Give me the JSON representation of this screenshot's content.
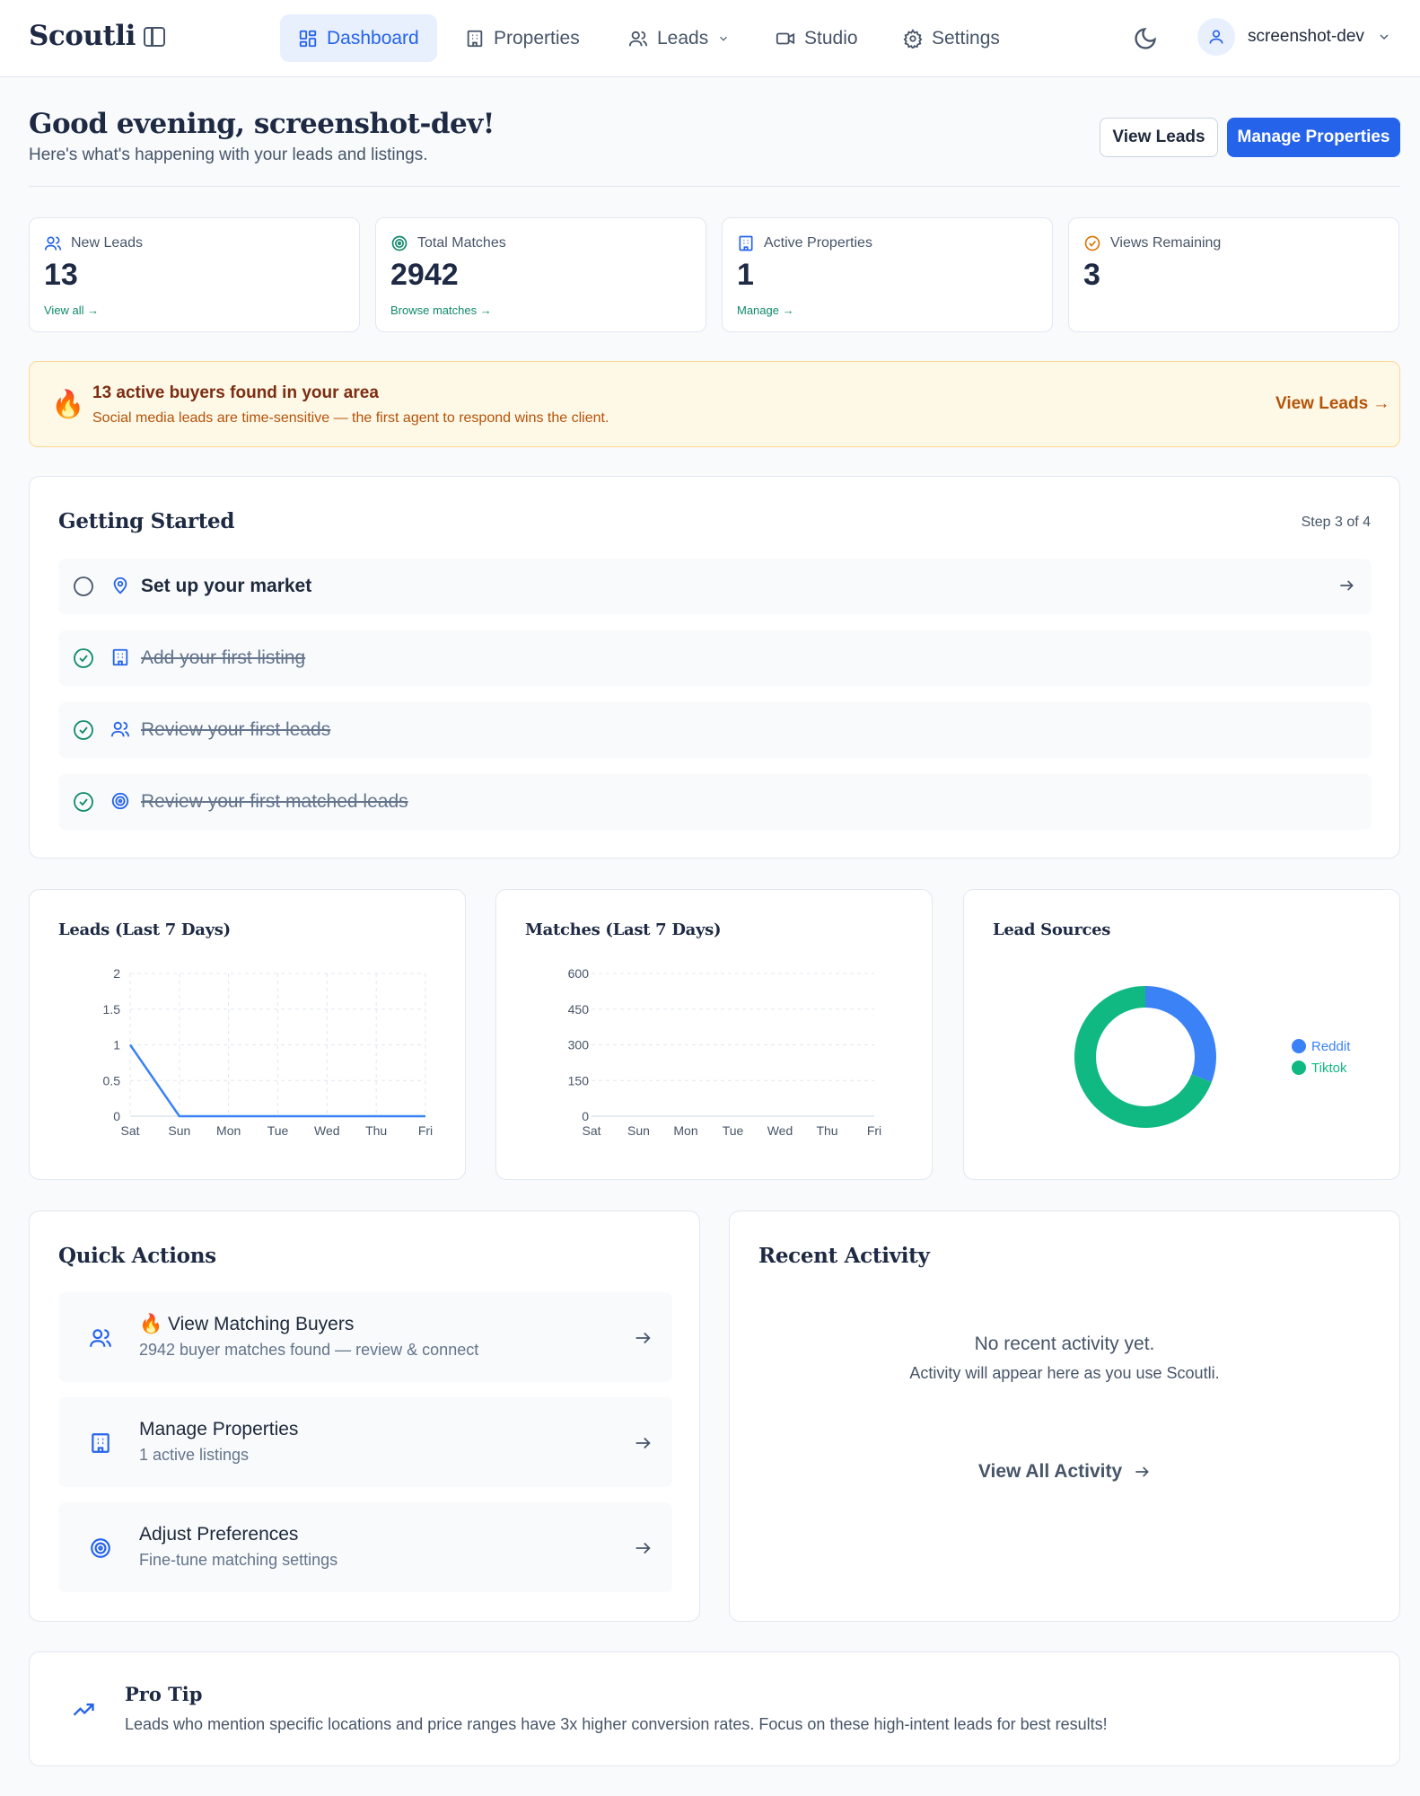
{
  "app": {
    "logo": "Scoutli"
  },
  "nav": {
    "items": [
      {
        "label": "Dashboard"
      },
      {
        "label": "Properties"
      },
      {
        "label": "Leads"
      },
      {
        "label": "Studio"
      },
      {
        "label": "Settings"
      }
    ],
    "user": "screenshot-dev"
  },
  "header": {
    "greeting": "Good evening, screenshot-dev!",
    "subtitle": "Here's what's happening with your leads and listings.",
    "view_leads": "View Leads",
    "manage_properties": "Manage Properties"
  },
  "stats": [
    {
      "label": "New Leads",
      "value": "13",
      "link": "View all →"
    },
    {
      "label": "Total Matches",
      "value": "2942",
      "link": "Browse matches →"
    },
    {
      "label": "Active Properties",
      "value": "1",
      "link": "Manage →"
    },
    {
      "label": "Views Remaining",
      "value": "3",
      "link": ""
    }
  ],
  "alert": {
    "icon": "🔥",
    "title": "13 active buyers found in your area",
    "text": "Social media leads are time-sensitive — the first agent to respond wins the client.",
    "action": "View Leads →"
  },
  "getting_started": {
    "title": "Getting Started",
    "step": "Step 3 of 4",
    "tasks": [
      {
        "label": "Set up your market",
        "done": false
      },
      {
        "label": "Add your first listing",
        "done": true
      },
      {
        "label": "Review your first leads",
        "done": true
      },
      {
        "label": "Review your first matched leads",
        "done": true
      }
    ]
  },
  "chart_data": [
    {
      "type": "line",
      "title": "Leads (Last 7 Days)",
      "categories": [
        "Sat",
        "Sun",
        "Mon",
        "Tue",
        "Wed",
        "Thu",
        "Fri"
      ],
      "series": [
        {
          "values": [
            1,
            0,
            0,
            0,
            0,
            0,
            0
          ],
          "color": "#3b82f6"
        }
      ],
      "yticks": [
        "0",
        "0.5",
        "1",
        "1.5",
        "2"
      ],
      "ylim": [
        0,
        2
      ],
      "grid": true
    },
    {
      "type": "line",
      "title": "Matches (Last 7 Days)",
      "categories": [
        "Sat",
        "Sun",
        "Mon",
        "Tue",
        "Wed",
        "Thu",
        "Fri"
      ],
      "series": [],
      "yticks": [
        "0",
        "150",
        "300",
        "450",
        "600"
      ],
      "ylim": [
        0,
        600
      ],
      "grid": true
    },
    {
      "type": "pie",
      "title": "Lead Sources",
      "slices": [
        {
          "name": "Reddit",
          "value": 4,
          "color": "#3b82f6"
        },
        {
          "name": "Tiktok",
          "value": 9,
          "color": "#10b981"
        }
      ],
      "legend": "right"
    }
  ],
  "quick_actions": {
    "title": "Quick Actions",
    "items": [
      {
        "title": "🔥 View Matching Buyers",
        "subtitle": "2942 buyer matches found — review & connect"
      },
      {
        "title": "Manage Properties",
        "subtitle": "1 active listings"
      },
      {
        "title": "Adjust Preferences",
        "subtitle": "Fine-tune matching settings"
      }
    ]
  },
  "recent_activity": {
    "title": "Recent Activity",
    "empty_title": "No recent activity yet.",
    "empty_text": "Activity will appear here as you use Scoutli.",
    "view_all": "View All Activity"
  },
  "pro_tip": {
    "title": "Pro Tip",
    "text": "Leads who mention specific locations and price ranges have 3x higher conversion rates. Focus on these high-intent leads for best results!"
  },
  "colors": {
    "primary": "#2563eb",
    "teal": "#0f8a6a",
    "amber": "#b45309"
  }
}
